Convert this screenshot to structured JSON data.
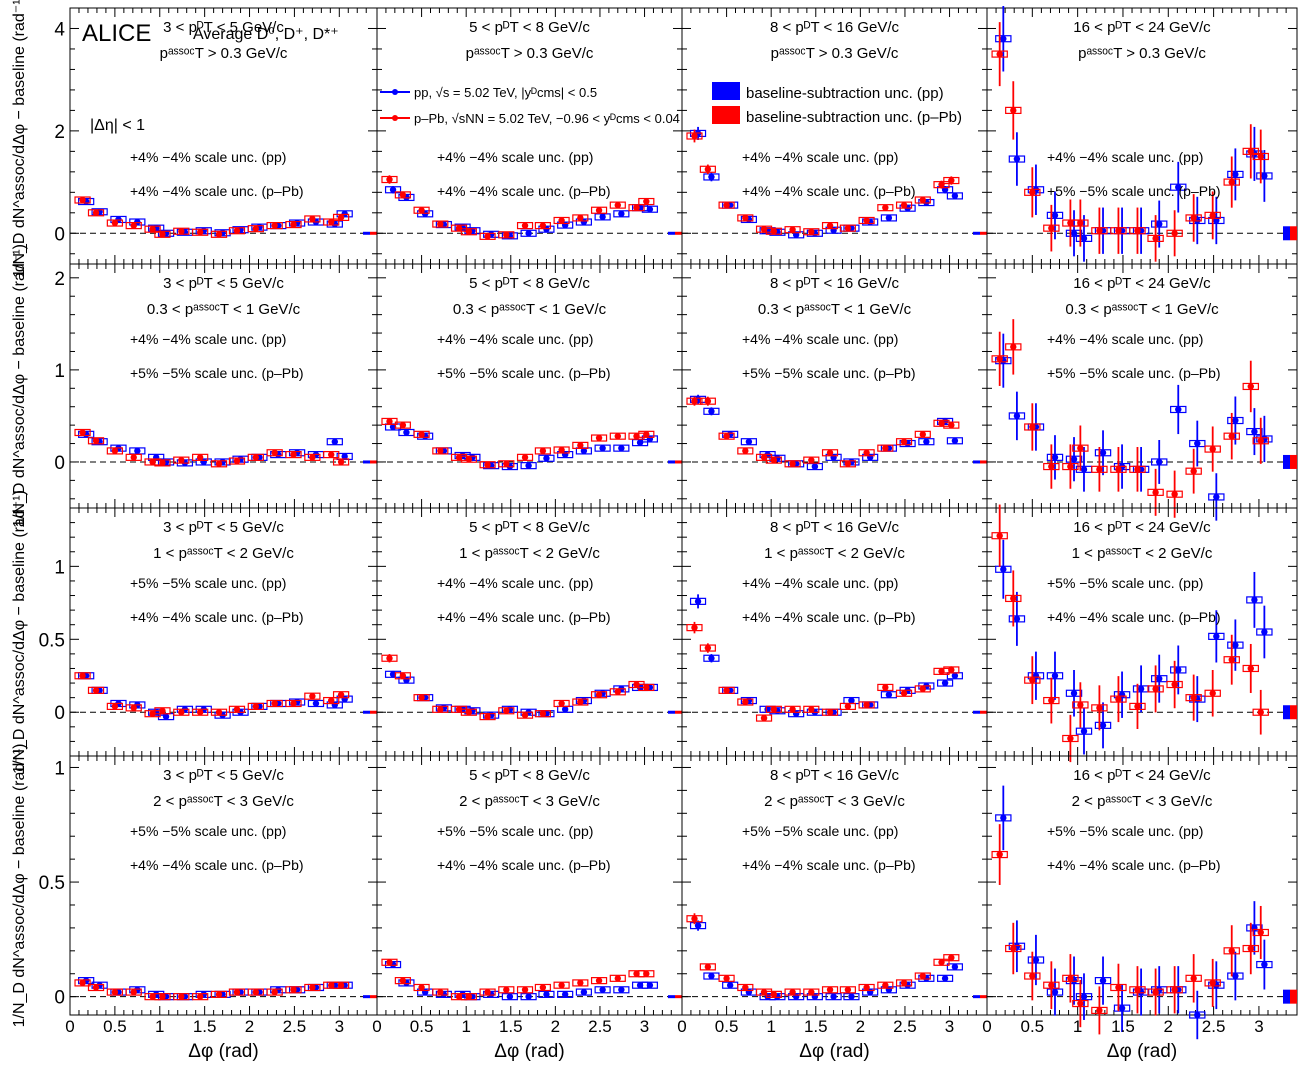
{
  "header": {
    "experiment": "ALICE",
    "species": "Average D⁰, D⁺, D*⁺",
    "eta_cut": "|Δη| < 1",
    "legend_pp": "pp, √s = 5.02 TeV, |yᴰcms| < 0.5",
    "legend_ppb": "p–Pb, √sNN = 5.02 TeV, −0.96 < yᴰcms < 0.04",
    "unc_pp": "baseline-subtraction unc. (pp)",
    "unc_ppb": "baseline-subtraction unc. (p–Pb)"
  },
  "axes": {
    "xlabel": "Δφ (rad)",
    "ylabel": "1/N_D dN^assoc/dΔφ − baseline (rad⁻¹)",
    "xticks": [
      "0",
      "0.5",
      "1",
      "1.5",
      "2",
      "2.5",
      "3"
    ],
    "xlim": [
      0,
      3.42
    ]
  },
  "pt_bins": [
    "3 < pᴰT < 5 GeV/c",
    "5 < pᴰT < 8 GeV/c",
    "8 < pᴰT < 16 GeV/c",
    "16 < pᴰT < 24 GeV/c"
  ],
  "assoc_bins": [
    "pᵃˢˢᵒᶜT > 0.3 GeV/c",
    "0.3 < pᵃˢˢᵒᶜT < 1 GeV/c",
    "1 < pᵃˢˢᵒᶜT < 2 GeV/c",
    "2 < pᵃˢˢᵒᶜT < 3 GeV/c"
  ],
  "scale_unc": [
    [
      [
        "+4% −4% scale unc. (pp)",
        "+4% −4% scale unc. (p–Pb)"
      ],
      [
        "+4% −4% scale unc. (pp)",
        "+4% −4% scale unc. (p–Pb)"
      ],
      [
        "+4% −4% scale unc. (pp)",
        "+4% −4% scale unc. (p–Pb)"
      ],
      [
        "+4% −4% scale unc. (pp)",
        "+5% −5% scale unc. (p–Pb)"
      ]
    ],
    [
      [
        "+4% −4% scale unc. (pp)",
        "+5% −5% scale unc. (p–Pb)"
      ],
      [
        "+4% −4% scale unc. (pp)",
        "+5% −5% scale unc. (p–Pb)"
      ],
      [
        "+4% −4% scale unc. (pp)",
        "+5% −5% scale unc. (p–Pb)"
      ],
      [
        "+4% −4% scale unc. (pp)",
        "+5% −5% scale unc. (p–Pb)"
      ]
    ],
    [
      [
        "+5% −5% scale unc. (pp)",
        "+4% −4% scale unc. (p–Pb)"
      ],
      [
        "+4% −4% scale unc. (pp)",
        "+4% −4% scale unc. (p–Pb)"
      ],
      [
        "+4% −4% scale unc. (pp)",
        "+4% −4% scale unc. (p–Pb)"
      ],
      [
        "+5% −5% scale unc. (pp)",
        "+4% −4% scale unc. (p–Pb)"
      ]
    ],
    [
      [
        "+5% −5% scale unc. (pp)",
        "+4% −4% scale unc. (p–Pb)"
      ],
      [
        "+5% −5% scale unc. (pp)",
        "+4% −4% scale unc. (p–Pb)"
      ],
      [
        "+5% −5% scale unc. (pp)",
        "+4% −4% scale unc. (p–Pb)"
      ],
      [
        "+5% −5% scale unc. (pp)",
        "+4% −4% scale unc. (p–Pb)"
      ]
    ]
  ],
  "colors": {
    "pp": "#0000ff",
    "ppb": "#ff0000",
    "axis": "#000000"
  },
  "chart_data": {
    "type": "scatter",
    "x": [
      0.16,
      0.31,
      0.52,
      0.73,
      0.94,
      1.05,
      1.26,
      1.47,
      1.68,
      1.88,
      2.09,
      2.3,
      2.51,
      2.72,
      2.93,
      3.04
    ],
    "rows": [
      {
        "ylim": [
          -0.6,
          4.4
        ],
        "yticks": [
          0,
          2,
          4
        ],
        "panels": [
          {
            "pp": [
              0.62,
              0.42,
              0.27,
              0.22,
              0.1,
              0.0,
              0.02,
              0.05,
              0.01,
              0.07,
              0.12,
              0.15,
              0.2,
              0.22,
              0.18,
              0.38
            ],
            "ppb": [
              0.65,
              0.4,
              0.2,
              0.15,
              0.08,
              -0.02,
              0.04,
              0.02,
              -0.02,
              0.05,
              0.09,
              0.15,
              0.17,
              0.28,
              0.22,
              0.31
            ]
          },
          {
            "pp": [
              0.85,
              0.7,
              0.38,
              0.17,
              0.12,
              0.05,
              -0.02,
              -0.05,
              0.0,
              0.08,
              0.16,
              0.22,
              0.32,
              0.38,
              0.5,
              0.47
            ],
            "ppb": [
              1.05,
              0.75,
              0.45,
              0.18,
              0.1,
              0.03,
              -0.06,
              -0.03,
              0.15,
              0.15,
              0.25,
              0.3,
              0.45,
              0.55,
              0.5,
              0.62
            ]
          },
          {
            "pp": [
              1.95,
              1.1,
              0.55,
              0.27,
              0.05,
              0.02,
              -0.03,
              0.0,
              0.06,
              0.1,
              0.22,
              0.3,
              0.49,
              0.6,
              0.85,
              0.73
            ],
            "ppb": [
              1.9,
              1.25,
              0.55,
              0.3,
              0.08,
              0.04,
              0.07,
              0.03,
              0.15,
              0.1,
              0.25,
              0.5,
              0.55,
              0.65,
              0.95,
              1.03
            ]
          },
          {
            "pp": [
              3.8,
              1.45,
              0.85,
              0.35,
              0.0,
              -0.1,
              0.05,
              0.05,
              0.05,
              0.18,
              0.9,
              0.25,
              0.25,
              1.15,
              1.55,
              1.12
            ],
            "ppb": [
              3.5,
              2.4,
              0.8,
              0.1,
              0.2,
              0.2,
              0.05,
              0.05,
              0.05,
              -0.1,
              0.0,
              0.3,
              0.35,
              1.0,
              1.6,
              1.5
            ]
          }
        ]
      },
      {
        "ylim": [
          -0.5,
          2.15
        ],
        "yticks": [
          0,
          1,
          2
        ],
        "panels": [
          {
            "pp": [
              0.3,
              0.22,
              0.15,
              0.12,
              0.05,
              0.0,
              -0.01,
              0.0,
              0.0,
              0.03,
              0.05,
              0.08,
              0.1,
              0.08,
              0.22,
              0.06
            ],
            "ppb": [
              0.32,
              0.23,
              0.12,
              0.05,
              0.0,
              -0.01,
              0.02,
              0.05,
              -0.02,
              0.01,
              0.05,
              0.1,
              0.08,
              0.05,
              0.08,
              0.0
            ]
          },
          {
            "pp": [
              0.38,
              0.32,
              0.28,
              0.12,
              0.07,
              0.05,
              -0.04,
              -0.05,
              -0.04,
              0.04,
              0.08,
              0.12,
              0.15,
              0.15,
              0.21,
              0.25
            ],
            "ppb": [
              0.44,
              0.4,
              0.3,
              0.12,
              0.05,
              0.03,
              -0.03,
              -0.02,
              0.05,
              0.12,
              0.13,
              0.18,
              0.26,
              0.28,
              0.28,
              0.3
            ]
          },
          {
            "pp": [
              0.68,
              0.55,
              0.3,
              0.22,
              0.08,
              0.04,
              -0.02,
              -0.05,
              0.05,
              0.0,
              0.05,
              0.15,
              0.2,
              0.22,
              0.44,
              0.23
            ],
            "ppb": [
              0.66,
              0.66,
              0.28,
              0.12,
              0.05,
              0.02,
              -0.02,
              0.02,
              0.1,
              -0.02,
              0.1,
              0.15,
              0.22,
              0.3,
              0.42,
              0.4
            ]
          },
          {
            "pp": [
              1.1,
              0.5,
              0.38,
              0.05,
              0.03,
              -0.08,
              0.1,
              -0.05,
              -0.08,
              0.0,
              0.57,
              0.2,
              -0.38,
              0.45,
              0.33,
              0.25
            ],
            "ppb": [
              1.12,
              1.25,
              0.38,
              -0.05,
              -0.05,
              0.15,
              -0.08,
              -0.08,
              -0.08,
              -0.33,
              -0.35,
              -0.1,
              0.14,
              0.28,
              0.82,
              0.23
            ]
          }
        ]
      },
      {
        "ylim": [
          -0.3,
          1.4
        ],
        "yticks": [
          0,
          0.5,
          1
        ],
        "panels": [
          {
            "pp": [
              0.25,
              0.15,
              0.06,
              0.05,
              0.0,
              -0.03,
              0.02,
              0.02,
              -0.02,
              0.0,
              0.04,
              0.06,
              0.07,
              0.06,
              0.05,
              0.09
            ],
            "ppb": [
              0.25,
              0.15,
              0.04,
              0.03,
              -0.01,
              0.01,
              0.0,
              0.0,
              0.0,
              0.02,
              0.04,
              0.06,
              0.06,
              0.11,
              0.08,
              0.12
            ]
          },
          {
            "pp": [
              0.26,
              0.22,
              0.1,
              0.03,
              0.02,
              0.01,
              -0.02,
              0.02,
              0.0,
              -0.01,
              0.02,
              0.08,
              0.13,
              0.16,
              0.17,
              0.17
            ],
            "ppb": [
              0.37,
              0.25,
              0.1,
              0.02,
              0.02,
              0.0,
              -0.03,
              0.01,
              -0.02,
              -0.01,
              0.06,
              0.07,
              0.12,
              0.14,
              0.19,
              0.17
            ]
          },
          {
            "pp": [
              0.76,
              0.37,
              0.15,
              0.08,
              0.02,
              0.01,
              -0.01,
              0.0,
              0.0,
              0.08,
              0.05,
              0.12,
              0.15,
              0.18,
              0.2,
              0.25
            ],
            "ppb": [
              0.58,
              0.44,
              0.15,
              0.07,
              -0.04,
              0.02,
              0.02,
              0.02,
              0.0,
              0.04,
              0.05,
              0.17,
              0.13,
              0.16,
              0.28,
              0.29
            ]
          },
          {
            "pp": [
              0.98,
              0.64,
              0.25,
              0.25,
              0.13,
              -0.13,
              -0.09,
              0.12,
              0.16,
              0.23,
              0.29,
              0.09,
              0.52,
              0.46,
              0.77,
              0.55
            ],
            "ppb": [
              1.21,
              0.78,
              0.22,
              0.08,
              -0.18,
              0.05,
              0.03,
              0.09,
              0.04,
              0.16,
              0.19,
              0.1,
              0.13,
              0.36,
              0.3,
              0.0
            ]
          }
        ]
      },
      {
        "ylim": [
          -0.08,
          1.05
        ],
        "yticks": [
          0,
          0.5,
          1
        ],
        "panels": [
          {
            "pp": [
              0.07,
              0.05,
              0.02,
              0.03,
              0.01,
              0.0,
              0.0,
              0.01,
              0.01,
              0.02,
              0.02,
              0.03,
              0.03,
              0.04,
              0.05,
              0.05
            ],
            "ppb": [
              0.06,
              0.04,
              0.02,
              0.02,
              0.0,
              0.0,
              0.0,
              0.0,
              0.01,
              0.02,
              0.02,
              0.02,
              0.03,
              0.04,
              0.05,
              0.05
            ]
          },
          {
            "pp": [
              0.14,
              0.06,
              0.02,
              0.01,
              0.01,
              0.0,
              0.01,
              0.0,
              0.0,
              0.01,
              0.01,
              0.02,
              0.03,
              0.03,
              0.05,
              0.05
            ],
            "ppb": [
              0.15,
              0.07,
              0.04,
              0.02,
              0.0,
              0.0,
              0.02,
              0.03,
              0.03,
              0.04,
              0.05,
              0.06,
              0.07,
              0.08,
              0.1,
              0.1
            ]
          },
          {
            "pp": [
              0.31,
              0.09,
              0.05,
              0.02,
              0.0,
              0.0,
              0.0,
              0.0,
              0.0,
              0.0,
              0.02,
              0.03,
              0.05,
              0.08,
              0.08,
              0.13
            ],
            "ppb": [
              0.34,
              0.13,
              0.08,
              0.04,
              0.02,
              0.01,
              0.02,
              0.02,
              0.03,
              0.03,
              0.04,
              0.05,
              0.06,
              0.09,
              0.15,
              0.17
            ]
          },
          {
            "pp": [
              0.78,
              0.22,
              0.16,
              0.02,
              0.07,
              0.0,
              0.07,
              -0.05,
              0.02,
              0.03,
              0.03,
              -0.08,
              0.05,
              0.09,
              0.3,
              0.14
            ],
            "ppb": [
              0.62,
              0.21,
              0.09,
              0.05,
              0.08,
              -0.03,
              -0.06,
              0.04,
              0.03,
              0.02,
              0.03,
              0.08,
              0.06,
              0.2,
              0.21,
              0.28
            ]
          }
        ]
      }
    ]
  }
}
